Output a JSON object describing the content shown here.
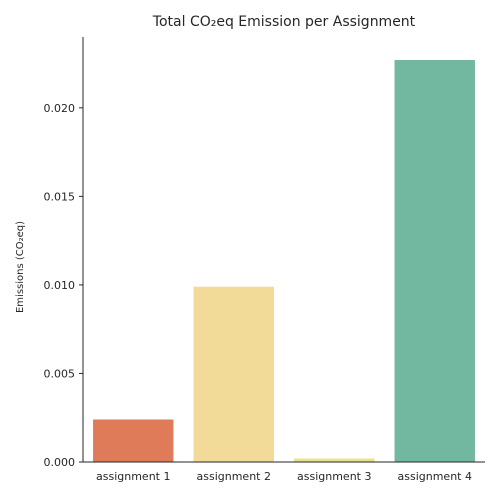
{
  "chart_data": {
    "type": "bar",
    "title": "Total CO₂eq Emission per Assignment",
    "xlabel": "",
    "ylabel": "Emissions (CO₂eq)",
    "categories": [
      "assignment 1",
      "assignment 2",
      "assignment 3",
      "assignment 4"
    ],
    "values": [
      0.0024,
      0.0099,
      0.0002,
      0.0227
    ],
    "colors": [
      "#e07b5a",
      "#f2da98",
      "#e9e28f",
      "#72b7a0"
    ],
    "ylim": [
      0,
      0.024
    ],
    "yticks": [
      0.0,
      0.005,
      0.01,
      0.015,
      0.02
    ],
    "ytick_labels": [
      "0.000",
      "0.005",
      "0.010",
      "0.015",
      "0.020"
    ],
    "grid": false,
    "legend": "none"
  }
}
